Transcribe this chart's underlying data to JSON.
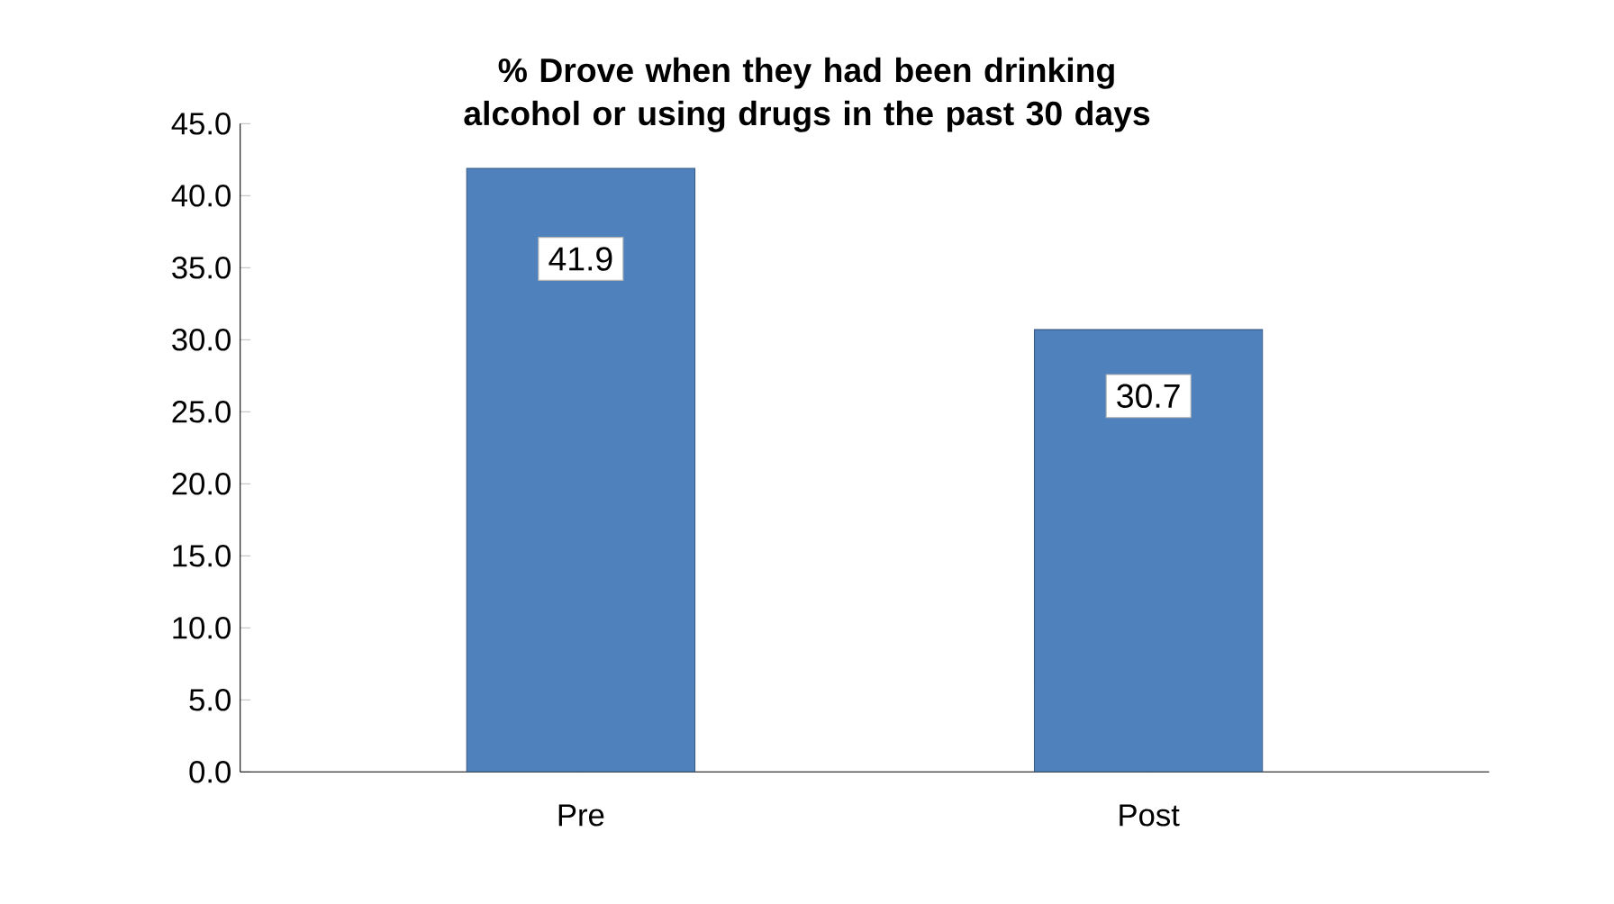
{
  "chart_data": {
    "type": "bar",
    "title": "% Drove when they had been drinking alcohol or using drugs in the past 30 days",
    "categories": [
      "Pre",
      "Post"
    ],
    "values": [
      41.9,
      30.7
    ],
    "color": "#4f81bd",
    "data_labels": true,
    "ylim": [
      0,
      45
    ],
    "yticks": [
      {
        "value": 0,
        "label": "0.0"
      },
      {
        "value": 5,
        "label": "5.0"
      },
      {
        "value": 10,
        "label": "10.0"
      },
      {
        "value": 15,
        "label": "15.0"
      },
      {
        "value": 20,
        "label": "20.0"
      },
      {
        "value": 25,
        "label": "25.0"
      },
      {
        "value": 30,
        "label": "30.0"
      },
      {
        "value": 35,
        "label": "35.0"
      },
      {
        "value": 40,
        "label": "40.0"
      },
      {
        "value": 45,
        "label": "45.0"
      }
    ],
    "grid": false
  }
}
